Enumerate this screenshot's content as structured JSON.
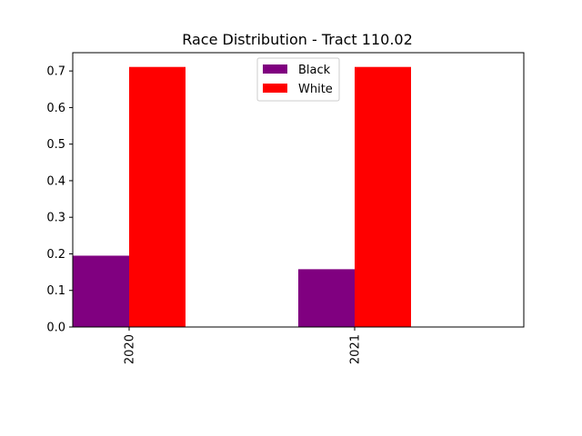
{
  "chart_data": {
    "type": "bar",
    "title": "Race Distribution - Tract 110.02",
    "xlabel": "",
    "ylabel": "",
    "categories": [
      "2020",
      "2021"
    ],
    "series": [
      {
        "name": "Black",
        "values": [
          0.195,
          0.158
        ],
        "color": "#800080"
      },
      {
        "name": "White",
        "values": [
          0.711,
          0.711
        ],
        "color": "#ff0000"
      }
    ],
    "ylim": [
      0,
      0.75
    ],
    "yticks": [
      0.0,
      0.1,
      0.2,
      0.3,
      0.4,
      0.5,
      0.6,
      0.7
    ],
    "ytick_labels": [
      "0.0",
      "0.1",
      "0.2",
      "0.3",
      "0.4",
      "0.5",
      "0.6",
      "0.7"
    ],
    "grid": false,
    "legend_position": "top-center"
  }
}
